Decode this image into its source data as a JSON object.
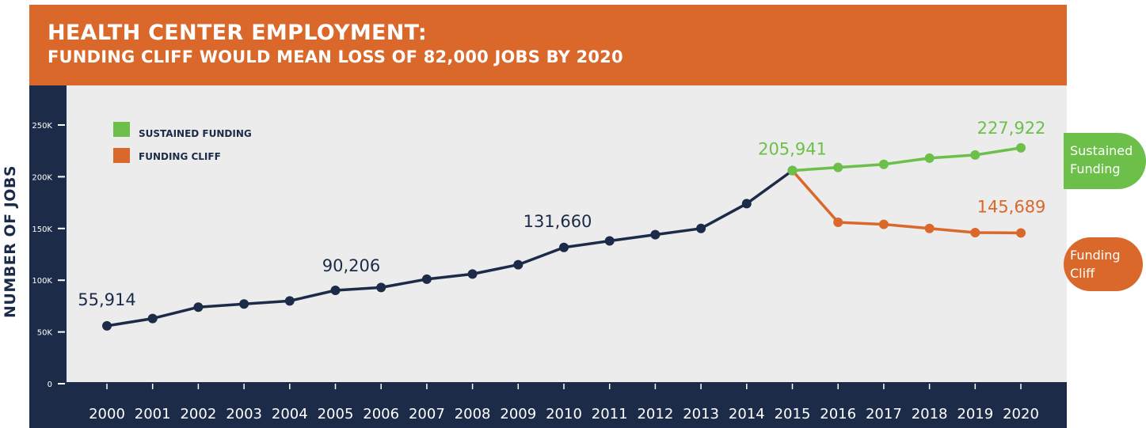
{
  "header": {
    "title": "HEALTH CENTER EMPLOYMENT:",
    "subtitle": "FUNDING CLIFF WOULD MEAN LOSS OF 82,000 JOBS BY 2020"
  },
  "colors": {
    "banner": "#d9682a",
    "panel": "#1c2b48",
    "plot_bg": "#ececec",
    "sustained": "#6cc04a",
    "cliff": "#d9682a",
    "history": "#1c2b48"
  },
  "end_labels": {
    "sustained": [
      "Sustained",
      "Funding"
    ],
    "cliff": [
      "Funding",
      "Cliff"
    ]
  },
  "chart_data": {
    "type": "line",
    "title": "HEALTH CENTER EMPLOYMENT:",
    "subtitle": "FUNDING CLIFF WOULD MEAN LOSS OF 82,000 JOBS BY 2020",
    "xlabel": "",
    "ylabel": "NUMBER OF JOBS",
    "ylim": [
      0,
      250000
    ],
    "yticks": [
      0,
      50000,
      100000,
      150000,
      200000,
      250000
    ],
    "ytick_labels": [
      "0",
      "50K",
      "100K",
      "150K",
      "200K",
      "250K"
    ],
    "x": [
      2000,
      2001,
      2002,
      2003,
      2004,
      2005,
      2006,
      2007,
      2008,
      2009,
      2010,
      2011,
      2012,
      2013,
      2014,
      2015,
      2016,
      2017,
      2018,
      2019,
      2020
    ],
    "xtick_labels": [
      "2000",
      "2001",
      "2002",
      "2003",
      "2004",
      "2005",
      "2006",
      "2007",
      "2008",
      "2009",
      "2010",
      "2011",
      "2012",
      "2013",
      "2014",
      "2015",
      "2016",
      "2017",
      "2018",
      "2019",
      "2020"
    ],
    "legend": {
      "position": "top-left",
      "entries": [
        "SUSTAINED FUNDING",
        "FUNDING CLIFF"
      ]
    },
    "grid": false,
    "series": [
      {
        "name": "",
        "color": "#1c2b48",
        "points": [
          [
            2000,
            55914
          ],
          [
            2001,
            63000
          ],
          [
            2002,
            74000
          ],
          [
            2003,
            77000
          ],
          [
            2004,
            80000
          ],
          [
            2005,
            90206
          ],
          [
            2006,
            93000
          ],
          [
            2007,
            101000
          ],
          [
            2008,
            106000
          ],
          [
            2009,
            115000
          ],
          [
            2010,
            131660
          ],
          [
            2011,
            138000
          ],
          [
            2012,
            144000
          ],
          [
            2013,
            150000
          ],
          [
            2014,
            174000
          ],
          [
            2015,
            205941
          ]
        ]
      },
      {
        "name": "SUSTAINED FUNDING",
        "color": "#6cc04a",
        "points": [
          [
            2015,
            205941
          ],
          [
            2016,
            209000
          ],
          [
            2017,
            212000
          ],
          [
            2018,
            218000
          ],
          [
            2019,
            221000
          ],
          [
            2020,
            227922
          ]
        ]
      },
      {
        "name": "FUNDING CLIFF",
        "color": "#d9682a",
        "points": [
          [
            2015,
            205941
          ],
          [
            2016,
            156000
          ],
          [
            2017,
            154000
          ],
          [
            2018,
            150000
          ],
          [
            2019,
            146000
          ],
          [
            2020,
            145689
          ]
        ]
      }
    ],
    "data_labels": [
      {
        "x": 2000,
        "y": 55914,
        "text": "55,914",
        "color": "#1c2b48",
        "dx": 0,
        "dy": -26
      },
      {
        "x": 2005,
        "y": 90206,
        "text": "90,206",
        "color": "#1c2b48",
        "dx": 20,
        "dy": -24
      },
      {
        "x": 2010,
        "y": 131660,
        "text": "131,660",
        "color": "#1c2b48",
        "dx": -8,
        "dy": -26
      },
      {
        "x": 2015,
        "y": 205941,
        "text": "205,941",
        "color": "#6cc04a",
        "dx": 0,
        "dy": -20
      },
      {
        "x": 2020,
        "y": 227922,
        "text": "227,922",
        "color": "#6cc04a",
        "dx": -12,
        "dy": -18
      },
      {
        "x": 2020,
        "y": 145689,
        "text": "145,689",
        "color": "#d9682a",
        "dx": -12,
        "dy": -26
      }
    ]
  }
}
